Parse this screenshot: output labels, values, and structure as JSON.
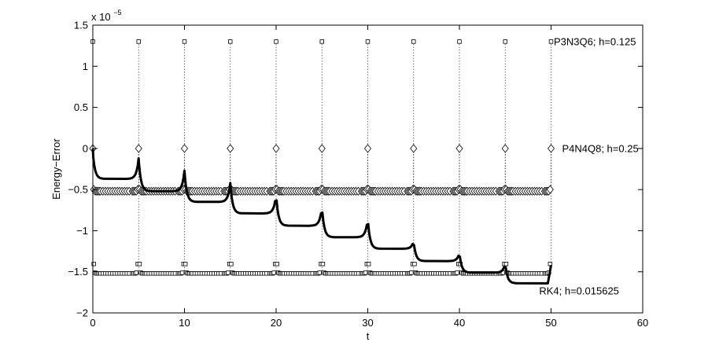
{
  "chart_data": {
    "type": "line",
    "title": "",
    "xlabel": "t",
    "ylabel": "Energy−Error",
    "exponent_label": "x 10",
    "exponent_power": "−5",
    "xlim": [
      0,
      60
    ],
    "ylim": [
      -2,
      1.5
    ],
    "y_scale_factor": 1e-05,
    "grid": false,
    "xticks": [
      0,
      10,
      20,
      30,
      40,
      50,
      60
    ],
    "xtick_labels": [
      "0",
      "10",
      "20",
      "30",
      "40",
      "50",
      "60"
    ],
    "yticks": [
      -2,
      -1.5,
      -1,
      -0.5,
      0,
      0.5,
      1,
      1.5
    ],
    "ytick_labels": [
      "−2",
      "−1.5",
      "−1",
      "−0.5",
      "0",
      "0.5",
      "1",
      "1.5"
    ],
    "annotations": [
      {
        "text": "P3N3Q6; h=0.125",
        "x": 50.3,
        "y": 1.3
      },
      {
        "text": "P4N4Q8; h=0.25",
        "x": 51.2,
        "y": 0.0
      },
      {
        "text": "RK4; h=0.015625",
        "x": 48.7,
        "y": -1.73
      }
    ],
    "series": [
      {
        "marker": "square",
        "period": 5,
        "min_value": -1.52,
        "peak_value": 1.3,
        "t_end": 50,
        "color": "#000000"
      },
      {
        "marker": "diamond",
        "period": 5,
        "min_value": -0.52,
        "peak_value": 0.0,
        "t_end": 50,
        "color": "#000000"
      },
      {
        "marker": "none",
        "line": "solid-thick",
        "t_end": 50,
        "plateaus": [
          -0.37,
          -0.52,
          -0.65,
          -0.79,
          -0.94,
          -1.08,
          -1.22,
          -1.37,
          -1.51,
          -1.64
        ],
        "peaks": [
          -0.12,
          -0.27,
          -0.42,
          -0.56,
          -0.71,
          -0.85,
          -1.13,
          -1.27,
          -1.4
        ],
        "color": "#000000"
      }
    ]
  }
}
